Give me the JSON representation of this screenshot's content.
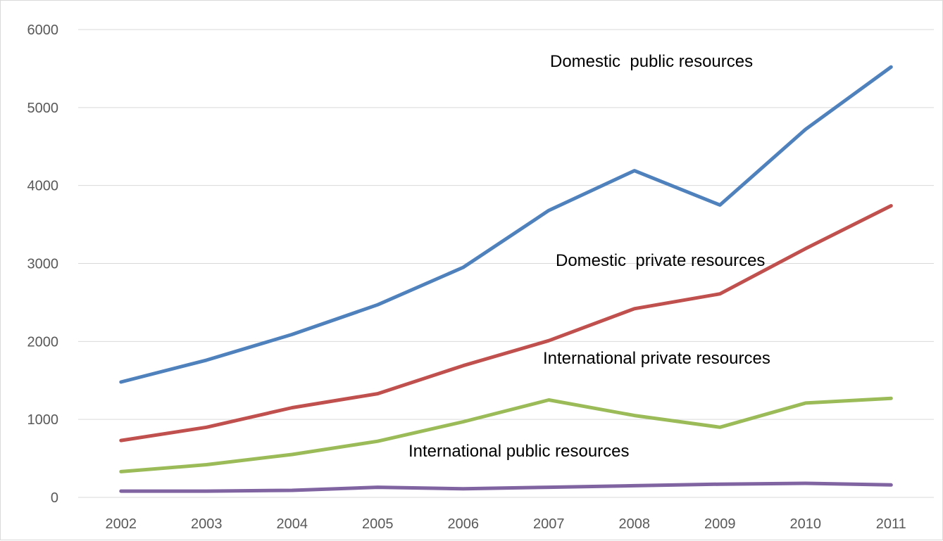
{
  "chart_data": {
    "type": "line",
    "title": "",
    "xlabel": "",
    "ylabel": "",
    "x": [
      "2002",
      "2003",
      "2004",
      "2005",
      "2006",
      "2007",
      "2008",
      "2009",
      "2010",
      "2011"
    ],
    "ylim": [
      0,
      6000
    ],
    "yticks": [
      "0",
      "1000",
      "2000",
      "3000",
      "4000",
      "5000",
      "6000"
    ],
    "grid": true,
    "legend": "none (series labelled directly on chart)",
    "series": [
      {
        "name": "Domestic  public resources",
        "color": "#4f81bd",
        "values": [
          1480,
          1760,
          2090,
          2470,
          2950,
          3680,
          4190,
          3750,
          4720,
          5520
        ]
      },
      {
        "name": "Domestic  private resources",
        "color": "#c0504d",
        "values": [
          730,
          900,
          1150,
          1330,
          1690,
          2010,
          2420,
          2610,
          3190,
          3740
        ]
      },
      {
        "name": "International private resources",
        "color": "#9bbb59",
        "values": [
          330,
          420,
          550,
          720,
          970,
          1250,
          1050,
          900,
          1210,
          1270
        ]
      },
      {
        "name": "International public resources",
        "color": "#8064a2",
        "values": [
          80,
          80,
          90,
          130,
          110,
          130,
          150,
          170,
          180,
          160
        ]
      }
    ]
  }
}
